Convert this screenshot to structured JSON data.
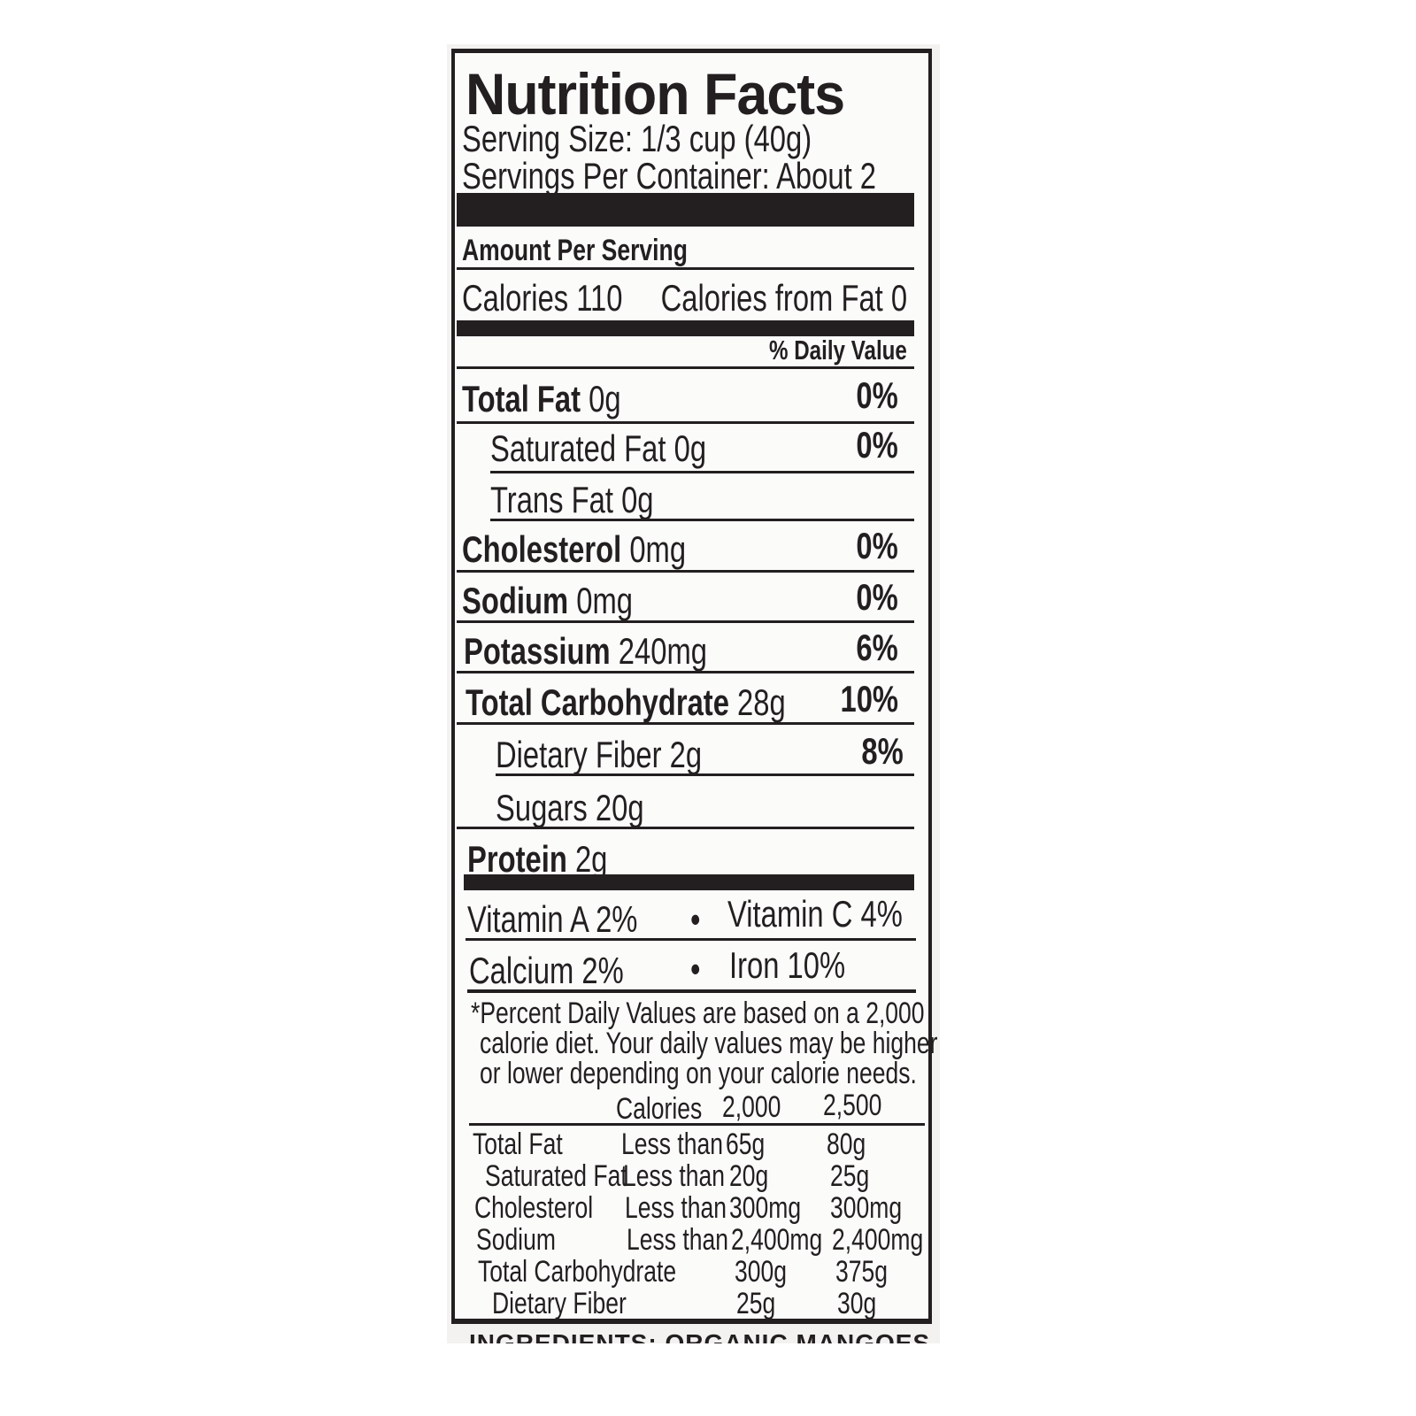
{
  "label": {
    "title": "Nutrition Facts",
    "serving_size": "Serving Size: 1/3 cup (40g)",
    "servings_per_container": "Servings Per Container: About 2",
    "amount_per_serving": "Amount Per Serving",
    "calories": "Calories 110",
    "calories_from_fat": "Calories from Fat 0",
    "daily_value_header": "% Daily Value",
    "nutrients": [
      {
        "name": "Total Fat",
        "amount": "0g",
        "dv": "0%"
      },
      {
        "name": "Saturated Fat",
        "amount": "0g",
        "dv": "0%"
      },
      {
        "name": "Trans Fat",
        "amount": "0g",
        "dv": ""
      },
      {
        "name": "Cholesterol",
        "amount": "0mg",
        "dv": "0%"
      },
      {
        "name": "Sodium",
        "amount": "0mg",
        "dv": "0%"
      },
      {
        "name": "Potassium",
        "amount": "240mg",
        "dv": "6%"
      },
      {
        "name": "Total Carbohydrate",
        "amount": "28g",
        "dv": "10%"
      },
      {
        "name": "Dietary Fiber",
        "amount": "2g",
        "dv": "8%"
      },
      {
        "name": "Sugars",
        "amount": "20g",
        "dv": ""
      },
      {
        "name": "Protein",
        "amount": "2g",
        "dv": ""
      }
    ],
    "vitamins": [
      "Vitamin A 2%",
      "Vitamin C 4%",
      "Calcium 2%",
      "Iron 10%"
    ],
    "bullet": "•",
    "footnote": [
      "*Percent Daily Values are based on a 2,000",
      "calorie diet. Your daily values may be higher",
      "or lower depending on your calorie needs."
    ],
    "dv_table": {
      "header": [
        "Calories",
        "2,000",
        "2,500"
      ],
      "rows": [
        [
          "Total Fat",
          "Less than",
          "65g",
          "80g"
        ],
        [
          "Saturated Fat",
          "Less than",
          "20g",
          "25g"
        ],
        [
          "Cholesterol",
          "Less than",
          "300mg",
          "300mg"
        ],
        [
          "Sodium",
          "Less than",
          "2,400mg",
          "2,400mg"
        ],
        [
          "Total Carbohydrate",
          "",
          "300g",
          "375g"
        ],
        [
          "Dietary Fiber",
          "",
          "25g",
          "30g"
        ]
      ]
    },
    "ingredients": "INGREDIENTS: ORGANIC MANGOES"
  }
}
